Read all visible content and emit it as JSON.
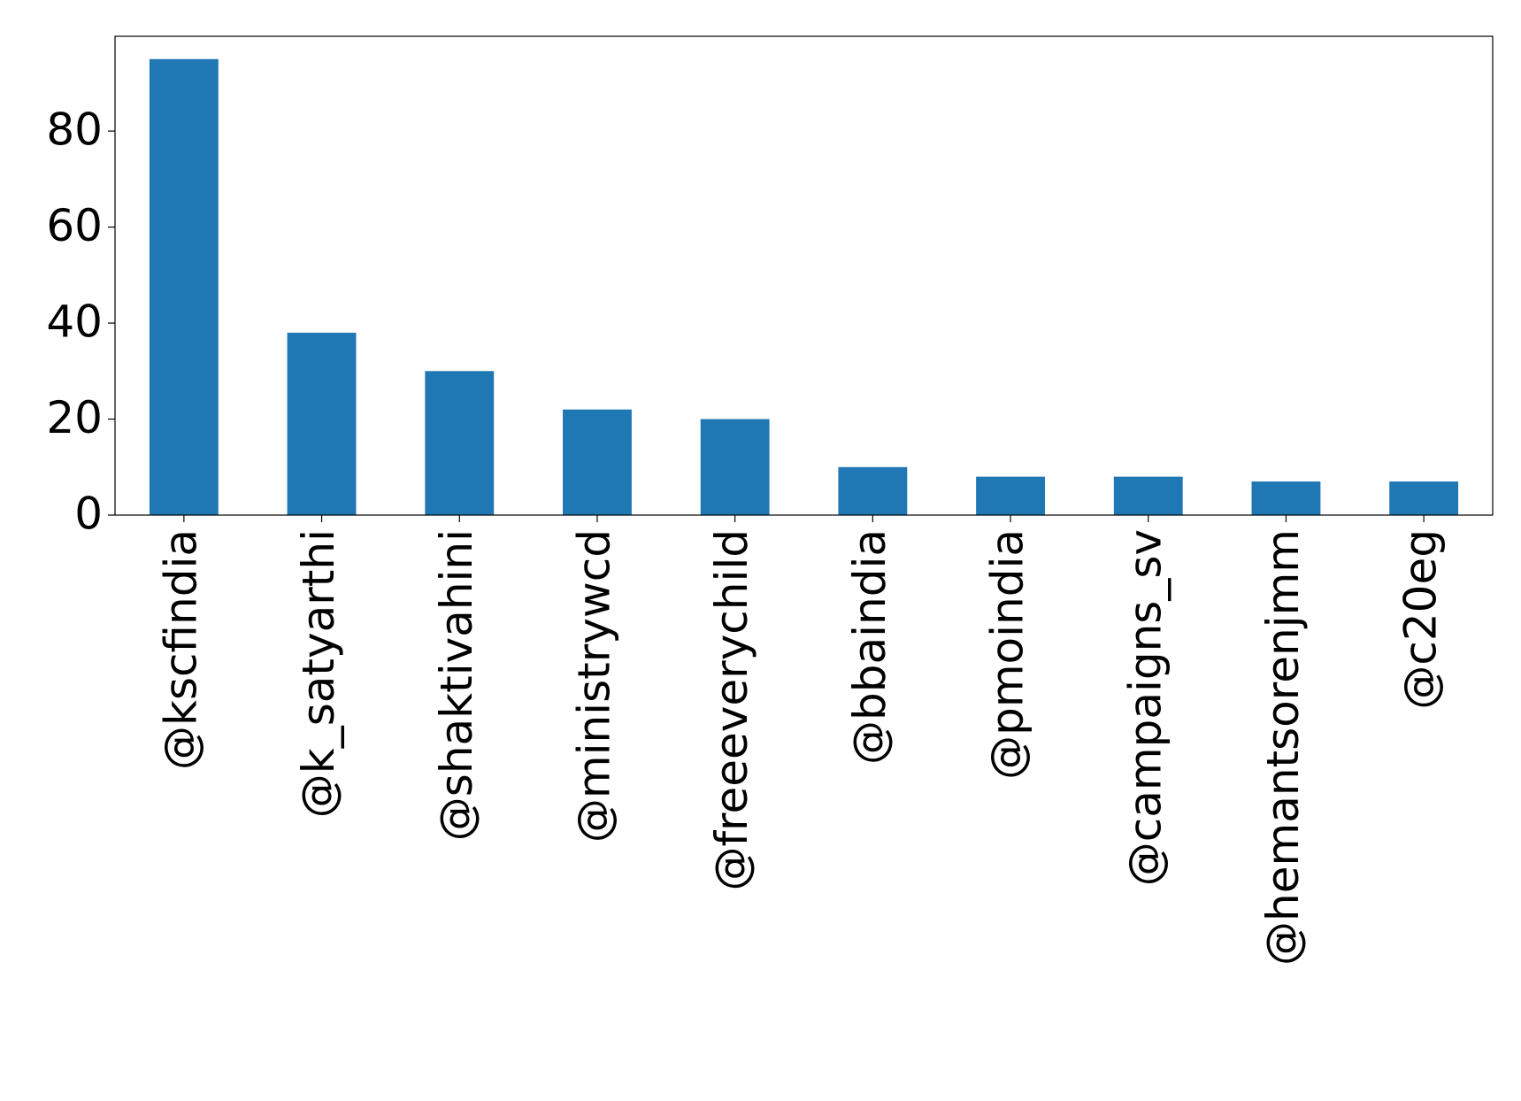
{
  "chart_data": {
    "type": "bar",
    "categories": [
      "@kscfindia",
      "@k_satyarthi",
      "@shaktivahini",
      "@ministrywcd",
      "@freeeverychild",
      "@bbaindia",
      "@pmoindia",
      "@campaigns_sv",
      "@hemantsorenjmm",
      "@c20eg"
    ],
    "values": [
      95,
      38,
      30,
      22,
      20,
      10,
      8,
      8,
      7,
      7
    ],
    "color": "#1f77b4",
    "ylim": [
      0,
      99.75
    ],
    "yticks": [
      0,
      20,
      40,
      60,
      80
    ],
    "grid": false
  }
}
